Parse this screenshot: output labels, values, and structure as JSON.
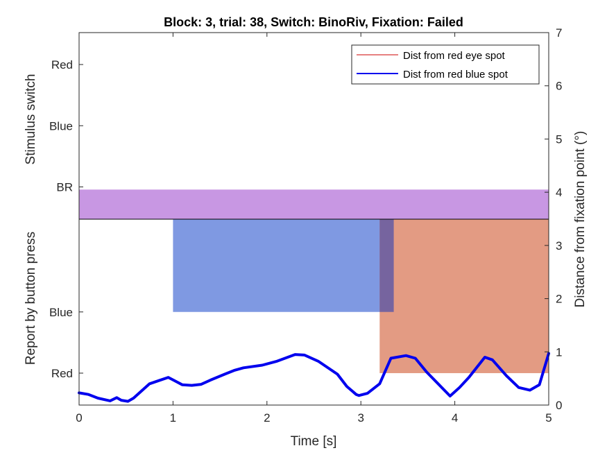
{
  "chart_data": {
    "type": "line",
    "title": "Block: 3, trial: 38, Switch: BinoRiv, Fixation: Failed",
    "xlabel": "Time [s]",
    "ylabel_left_top": "Stimulus switch",
    "ylabel_left_bottom": "Report by button press",
    "ylabel_right": "Distance from fixation point (°)",
    "xlim": [
      0,
      5
    ],
    "ylim_right": [
      0,
      7
    ],
    "x_ticks": [
      "0",
      "1",
      "2",
      "3",
      "4",
      "5"
    ],
    "y_right_ticks": [
      "0",
      "1",
      "2",
      "3",
      "4",
      "5",
      "6",
      "7"
    ],
    "y_left_ticks": [
      {
        "label": "Red",
        "value": 6.4
      },
      {
        "label": "Blue",
        "value": 5.25
      },
      {
        "label": "BR",
        "value": 4.1
      },
      {
        "label": "Blue",
        "value": 1.75
      },
      {
        "label": "Red",
        "value": 0.6
      }
    ],
    "legend": {
      "position": "top-right",
      "entries": [
        {
          "label": "Dist from red eye spot",
          "color": "#cc0000"
        },
        {
          "label": "Dist from red blue spot",
          "color": "#0000ee"
        }
      ]
    },
    "stimulus_bands": [
      {
        "label": "BR",
        "x_start": 0,
        "x_end": 5,
        "y_bottom": 3.5,
        "y_top": 4.05,
        "color": "#c897e3"
      }
    ],
    "report_bars": [
      {
        "label": "Blue",
        "x_start": 1.0,
        "x_end": 3.35,
        "y_bottom": 1.75,
        "y_top": 3.5,
        "color": "#7f99e2"
      },
      {
        "label": "Red",
        "x_start": 3.2,
        "x_end": 5.0,
        "y_bottom": 0.6,
        "y_top": 3.5,
        "color": "#e39b83"
      }
    ],
    "overlap_color": "#76649f",
    "series": [
      {
        "name": "Dist from red eye spot",
        "color": "#cc0000",
        "x": [],
        "y": []
      },
      {
        "name": "Dist from red blue spot",
        "color": "#0000ee",
        "x": [
          0,
          0.1,
          0.2,
          0.33,
          0.4,
          0.45,
          0.52,
          0.58,
          0.75,
          0.85,
          0.95,
          1.1,
          1.2,
          1.3,
          1.4,
          1.55,
          1.65,
          1.75,
          1.95,
          2.1,
          2.3,
          2.4,
          2.55,
          2.75,
          2.85,
          2.95,
          2.98,
          3.07,
          3.2,
          3.32,
          3.48,
          3.58,
          3.7,
          3.95,
          4.05,
          4.15,
          4.32,
          4.4,
          4.55,
          4.68,
          4.8,
          4.9,
          5.0
        ],
        "y": [
          0.23,
          0.2,
          0.13,
          0.08,
          0.14,
          0.09,
          0.07,
          0.13,
          0.4,
          0.46,
          0.52,
          0.38,
          0.37,
          0.39,
          0.47,
          0.58,
          0.65,
          0.7,
          0.75,
          0.82,
          0.95,
          0.94,
          0.82,
          0.58,
          0.35,
          0.2,
          0.18,
          0.22,
          0.4,
          0.88,
          0.93,
          0.88,
          0.62,
          0.17,
          0.33,
          0.52,
          0.9,
          0.85,
          0.55,
          0.33,
          0.28,
          0.38,
          0.97
        ]
      }
    ]
  }
}
